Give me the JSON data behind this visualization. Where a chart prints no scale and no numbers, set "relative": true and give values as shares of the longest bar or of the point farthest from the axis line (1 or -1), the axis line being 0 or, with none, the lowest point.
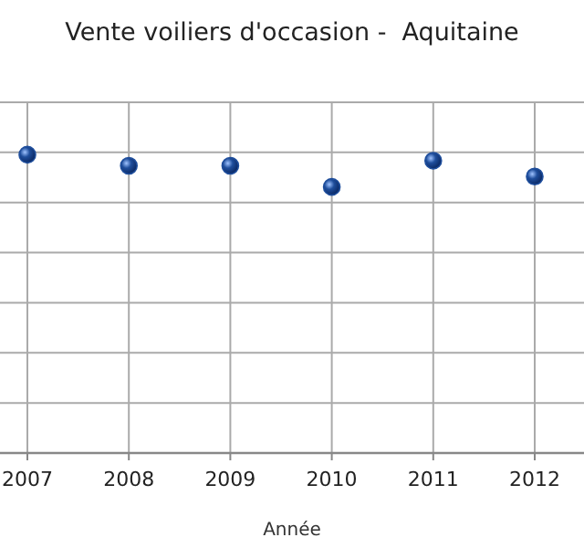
{
  "chart_data": {
    "type": "scatter",
    "title": "Vente voiliers d'occasion -  Aquitaine",
    "xlabel": "Année",
    "categories": [
      "2007",
      "2008",
      "2009",
      "2010",
      "2011",
      "2012"
    ],
    "relative": true,
    "series": [
      {
        "color": "#1f4e9c",
        "values": [
          1,
          0.963,
          0.963,
          0.892,
          0.98,
          0.927
        ]
      }
    ],
    "grid": true,
    "marker": "circle"
  }
}
